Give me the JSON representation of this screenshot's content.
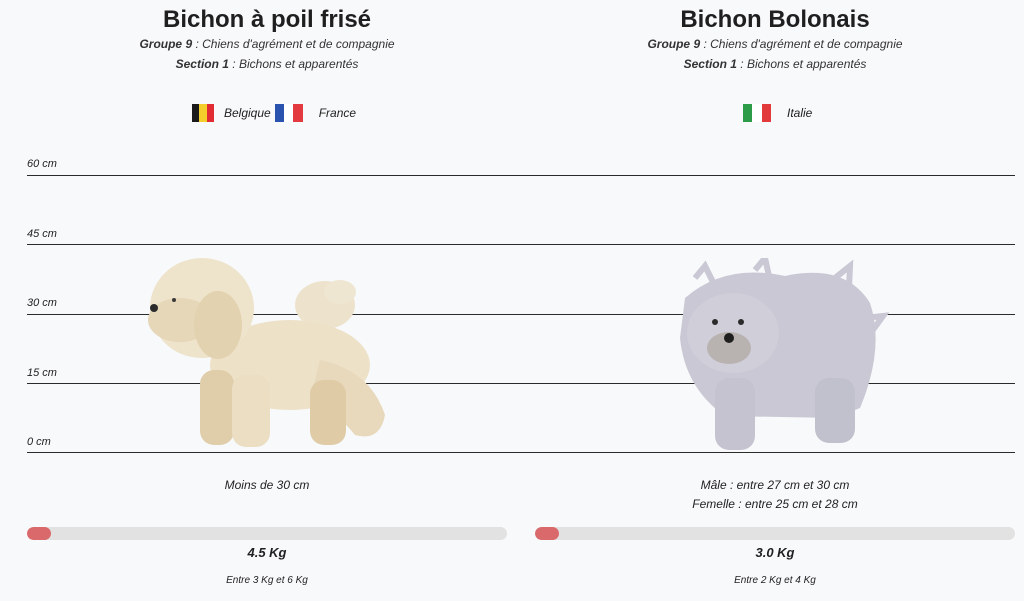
{
  "breeds": [
    {
      "name": "Bichon à poil frisé",
      "group_label": "Groupe 9",
      "group_value": " : Chiens d'agrément et de compagnie",
      "section_label": "Section 1",
      "section_value": " : Bichons et apparentés",
      "countries": [
        {
          "name": "Belgique",
          "flag_colors": [
            "#1a1a1a",
            "#f4cf2b",
            "#e12c34"
          ]
        },
        {
          "name": "France",
          "flag_colors": [
            "#2a53b0",
            "#ffffff",
            "#e33a3f"
          ]
        }
      ],
      "size_lines": [
        "Moins de 30 cm"
      ],
      "weight_value": "4.5 Kg",
      "weight_fraction": 0.05,
      "weight_range": "Entre 3 Kg et 6 Kg",
      "coat_color": "#ede1c8"
    },
    {
      "name": "Bichon Bolonais",
      "group_label": "Groupe 9",
      "group_value": " : Chiens d'agrément et de compagnie",
      "section_label": "Section 1",
      "section_value": " : Bichons et apparentés",
      "countries": [
        {
          "name": "Italie",
          "flag_colors": [
            "#2d9c48",
            "#ffffff",
            "#e23a3a"
          ]
        }
      ],
      "size_lines": [
        "Mâle : entre 27 cm et 30 cm",
        "Femelle : entre 25 cm et 28 cm"
      ],
      "weight_value": "3.0 Kg",
      "weight_fraction": 0.05,
      "weight_range": "Entre 2 Kg et 4 Kg",
      "coat_color": "#c9c8d4"
    }
  ],
  "scale": {
    "labels": [
      "60 cm",
      "45 cm",
      "30 cm",
      "15 cm",
      "0 cm"
    ],
    "line_color": "#2b2b2b"
  },
  "accent": "#d9696a"
}
